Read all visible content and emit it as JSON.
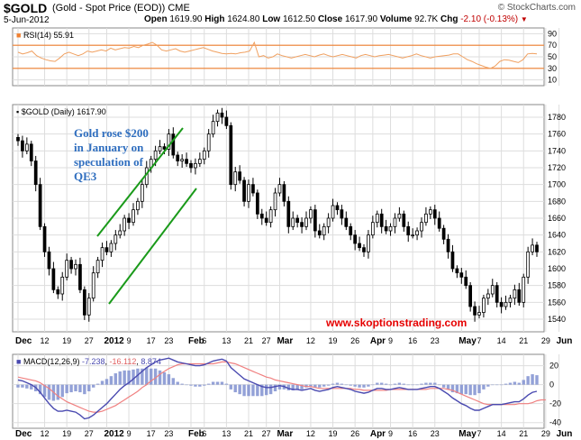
{
  "header": {
    "symbol": "$GOLD",
    "name": "(Gold - Spot Price (EOD)) CME",
    "date": "5-Jun-2012",
    "brand": "© StockCharts.com",
    "open_label": "Open",
    "open": "1619.90",
    "high_label": "High",
    "high": "1624.80",
    "low_label": "Low",
    "low": "1612.50",
    "close_label": "Close",
    "close": "1617.90",
    "volume_label": "Volume",
    "volume": "92.7K",
    "chg_label": "Chg",
    "chg": "-2.10 (-0.13%)",
    "chg_marker": "▼"
  },
  "chart_data": {
    "type": "candlestick",
    "rsi": {
      "title": "RSI(14) 55.91",
      "yticks": [
        90,
        70,
        50,
        30,
        10
      ],
      "ylim": [
        0,
        100
      ],
      "bands": [
        70,
        30
      ],
      "values": [
        58,
        55,
        57,
        60,
        52,
        48,
        45,
        43,
        42,
        48,
        55,
        58,
        55,
        52,
        55,
        60,
        58,
        60,
        62,
        60,
        65,
        62,
        64,
        66,
        65,
        68,
        66,
        70,
        72,
        75,
        70,
        62,
        60,
        62,
        64,
        60,
        58,
        60,
        62,
        64,
        66,
        63,
        60,
        58,
        56,
        55,
        56,
        55,
        57,
        58,
        60,
        75,
        50,
        52,
        48,
        50,
        55,
        52,
        50,
        48,
        50,
        52,
        54,
        52,
        50,
        53,
        55,
        52,
        50,
        52,
        54,
        52,
        50,
        48,
        52,
        54,
        52,
        50,
        52,
        53,
        54,
        52,
        50,
        48,
        50,
        52,
        55,
        52,
        50,
        48,
        50,
        51,
        52,
        53,
        55,
        55,
        50,
        45,
        42,
        38,
        35,
        32,
        30,
        34,
        42,
        45,
        44,
        42,
        40,
        45,
        55,
        56,
        55
      ]
    },
    "price": {
      "title": "$GOLD (Daily) 1617.90",
      "yticks": [
        1780,
        1760,
        1740,
        1720,
        1700,
        1680,
        1660,
        1640,
        1620,
        1600,
        1580,
        1560,
        1540
      ],
      "ylim": [
        1525,
        1795
      ],
      "closes": [
        1752,
        1740,
        1748,
        1728,
        1700,
        1650,
        1620,
        1600,
        1575,
        1570,
        1590,
        1610,
        1600,
        1605,
        1575,
        1545,
        1565,
        1595,
        1610,
        1625,
        1620,
        1630,
        1640,
        1645,
        1660,
        1655,
        1670,
        1680,
        1700,
        1720,
        1730,
        1740,
        1745,
        1742,
        1760,
        1735,
        1728,
        1730,
        1725,
        1720,
        1725,
        1730,
        1740,
        1760,
        1775,
        1785,
        1780,
        1770,
        1700,
        1715,
        1705,
        1680,
        1700,
        1690,
        1665,
        1660,
        1655,
        1670,
        1690,
        1700,
        1680,
        1650,
        1660,
        1655,
        1650,
        1660,
        1670,
        1645,
        1640,
        1650,
        1660,
        1675,
        1670,
        1660,
        1650,
        1640,
        1630,
        1625,
        1620,
        1640,
        1655,
        1665,
        1650,
        1645,
        1650,
        1660,
        1665,
        1650,
        1640,
        1640,
        1645,
        1655,
        1665,
        1670,
        1660,
        1648,
        1635,
        1620,
        1600,
        1595,
        1590,
        1580,
        1555,
        1545,
        1548,
        1565,
        1570,
        1580,
        1560,
        1555,
        1560,
        1565,
        1575,
        1560,
        1590,
        1620,
        1628,
        1620
      ]
    },
    "macd": {
      "title": "MACD(12,26,9)",
      "macd_value": "-7.238",
      "signal_value": "-16.112",
      "hist_value": "8.874",
      "yticks": [
        20,
        0,
        -20,
        -40
      ],
      "ylim": [
        -46,
        32
      ],
      "macd_line": [
        5,
        4,
        2,
        0,
        -3,
        -8,
        -14,
        -20,
        -25,
        -28,
        -28,
        -27,
        -28,
        -29,
        -32,
        -36,
        -35,
        -32,
        -28,
        -24,
        -20,
        -15,
        -10,
        -5,
        -1,
        2,
        6,
        10,
        14,
        18,
        21,
        24,
        26,
        27,
        28,
        26,
        24,
        23,
        22,
        21,
        20,
        20,
        21,
        23,
        25,
        26,
        27,
        25,
        18,
        14,
        10,
        6,
        4,
        2,
        0,
        -2,
        -3,
        -3,
        -2,
        -1,
        -2,
        -4,
        -5,
        -5,
        -6,
        -5,
        -4,
        -6,
        -7,
        -6,
        -5,
        -3,
        -2,
        -3,
        -4,
        -5,
        -7,
        -8,
        -9,
        -8,
        -6,
        -4,
        -4,
        -5,
        -5,
        -4,
        -3,
        -4,
        -5,
        -5,
        -5,
        -4,
        -3,
        -2,
        -2,
        -4,
        -7,
        -10,
        -14,
        -17,
        -20,
        -22,
        -25,
        -27,
        -27,
        -25,
        -23,
        -21,
        -21,
        -21,
        -20,
        -19,
        -18,
        -18,
        -15,
        -11,
        -8,
        -7
      ],
      "signal_line": [
        8,
        7,
        6,
        5,
        4,
        2,
        -1,
        -4,
        -8,
        -12,
        -15,
        -18,
        -20,
        -22,
        -24,
        -26,
        -28,
        -29,
        -29,
        -28,
        -26,
        -24,
        -22,
        -19,
        -16,
        -13,
        -10,
        -7,
        -3,
        0,
        4,
        7,
        11,
        14,
        17,
        19,
        21,
        22,
        22,
        22,
        22,
        22,
        22,
        22,
        22,
        23,
        24,
        24,
        23,
        22,
        20,
        18,
        16,
        14,
        12,
        10,
        8,
        7,
        5,
        4,
        3,
        2,
        1,
        0,
        -1,
        -2,
        -2,
        -3,
        -4,
        -4,
        -4,
        -4,
        -4,
        -4,
        -4,
        -4,
        -5,
        -5,
        -6,
        -6,
        -6,
        -6,
        -6,
        -6,
        -5,
        -5,
        -5,
        -5,
        -5,
        -5,
        -5,
        -5,
        -5,
        -4,
        -4,
        -4,
        -4,
        -5,
        -6,
        -8,
        -10,
        -12,
        -14,
        -16,
        -18,
        -20,
        -21,
        -21,
        -21,
        -21,
        -21,
        -21,
        -21,
        -20,
        -20,
        -20,
        -19,
        -17,
        -16,
        -16
      ]
    },
    "x_ticks": [
      {
        "label": "Dec",
        "index": 0,
        "bold": true
      },
      {
        "label": "12",
        "index": 6
      },
      {
        "label": "19",
        "index": 11
      },
      {
        "label": "27",
        "index": 16
      },
      {
        "label": "2012",
        "index": 20,
        "bold": true
      },
      {
        "label": "9",
        "index": 25
      },
      {
        "label": "17",
        "index": 30
      },
      {
        "label": "23",
        "index": 34
      },
      {
        "label": "Feb",
        "index": 39,
        "bold": true
      },
      {
        "label": "6",
        "index": 42
      },
      {
        "label": "13",
        "index": 47
      },
      {
        "label": "21",
        "index": 52
      },
      {
        "label": "27",
        "index": 56
      },
      {
        "label": "Mar",
        "index": 59,
        "bold": true
      },
      {
        "label": "12",
        "index": 66
      },
      {
        "label": "19",
        "index": 71
      },
      {
        "label": "26",
        "index": 76
      },
      {
        "label": "Apr",
        "index": 80,
        "bold": true
      },
      {
        "label": "9",
        "index": 84
      },
      {
        "label": "16",
        "index": 89
      },
      {
        "label": "23",
        "index": 94
      },
      {
        "label": "May",
        "index": 100,
        "bold": true
      },
      {
        "label": "7",
        "index": 104
      },
      {
        "label": "14",
        "index": 109
      },
      {
        "label": "21",
        "index": 114
      },
      {
        "label": "29",
        "index": 119
      },
      {
        "label": "Jun",
        "index": 122,
        "bold": true
      }
    ],
    "annotation": [
      "Gold rose $200",
      "in January on",
      "speculation of",
      "QE3"
    ],
    "watermark": "www.skoptionstrading.com",
    "colors": {
      "rsi_line": "#f0a060",
      "rsi_band": "#f08030",
      "candle": "#000000",
      "trend_lines": "#1a9a1a",
      "macd_line": "#4a4ab0",
      "signal_line": "#f08080",
      "histogram": "#8090d0",
      "annotation_text": "#2f6ebf",
      "watermark_text": "#e60000",
      "grid": "#dddddd"
    }
  }
}
